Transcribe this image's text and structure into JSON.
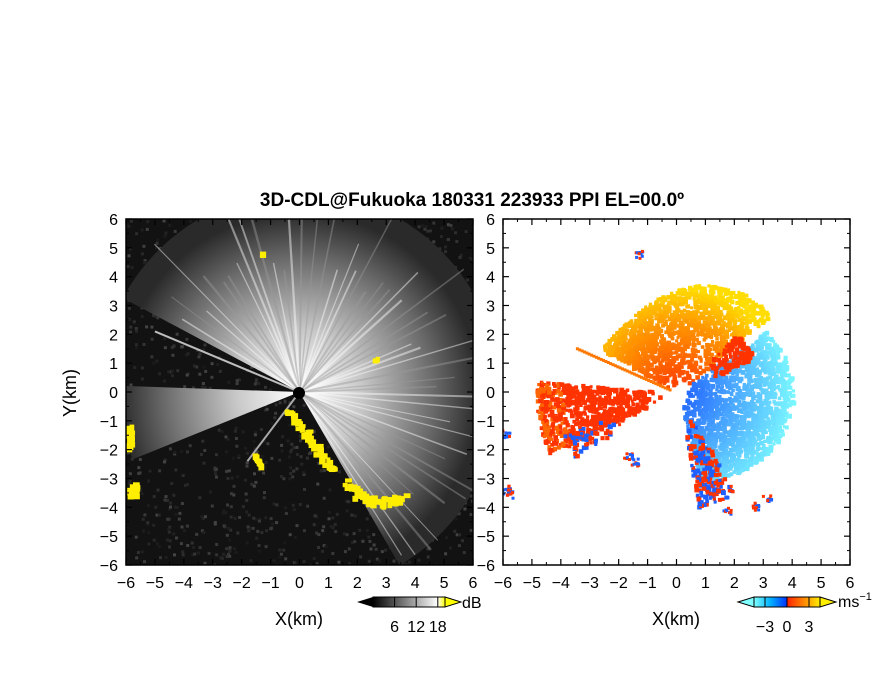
{
  "chart_data": [
    {
      "type": "heatmap",
      "title": "3D-CDL@Fukuoka 180331 223933 PPI EL=00.0º",
      "subplot": "left",
      "quantity": "backscatter intensity (SNR)",
      "xlabel": "X(km)",
      "ylabel": "Y(km)",
      "xlim": [
        -6,
        6
      ],
      "ylim": [
        -6,
        6
      ],
      "xticks": [
        -6,
        -5,
        -4,
        -3,
        -2,
        -1,
        0,
        1,
        2,
        3,
        4,
        5,
        6
      ],
      "yticks": [
        -6,
        -5,
        -4,
        -3,
        -2,
        -1,
        0,
        1,
        2,
        3,
        4,
        5,
        6
      ],
      "colorbar": {
        "unit": "dB",
        "ticks": [
          6,
          12,
          18
        ],
        "range": [
          0,
          20
        ],
        "colors": [
          "#000000",
          "#ffffff",
          "#ffff00"
        ]
      },
      "background_color": "#121212",
      "highlight_color": "#ffee00"
    },
    {
      "type": "heatmap",
      "subplot": "right",
      "quantity": "Doppler velocity",
      "xlabel": "X(km)",
      "xlim": [
        -6,
        6
      ],
      "ylim": [
        -6,
        6
      ],
      "xticks": [
        -6,
        -5,
        -4,
        -3,
        -2,
        -1,
        0,
        1,
        2,
        3,
        4,
        5,
        6
      ],
      "yticks": [
        -6,
        -5,
        -4,
        -3,
        -2,
        -1,
        0,
        1,
        2,
        3,
        4,
        5,
        6
      ],
      "colorbar": {
        "unit": "ms",
        "unit_exponent": "−1",
        "ticks": [
          -3,
          0,
          3
        ],
        "range": [
          -4.5,
          4.5
        ],
        "colors": [
          "#00ffff",
          "#0055ff",
          "#ff2200",
          "#ffee00"
        ]
      },
      "sector_colors": {
        "approaching": "#1e5fff",
        "receding": "#ff3300",
        "fast_receding": "#ffdd00",
        "fast_approaching": "#7fffff"
      }
    }
  ],
  "labels": {
    "title": "3D-CDL@Fukuoka 180331 223933 PPI EL=00.0º",
    "left_xlabel": "X(km)",
    "right_xlabel": "X(km)",
    "ylabel": "Y(km)",
    "cb_left_unit": "dB",
    "cb_right_unit": "ms",
    "cb_right_unit_exp": "−1"
  }
}
